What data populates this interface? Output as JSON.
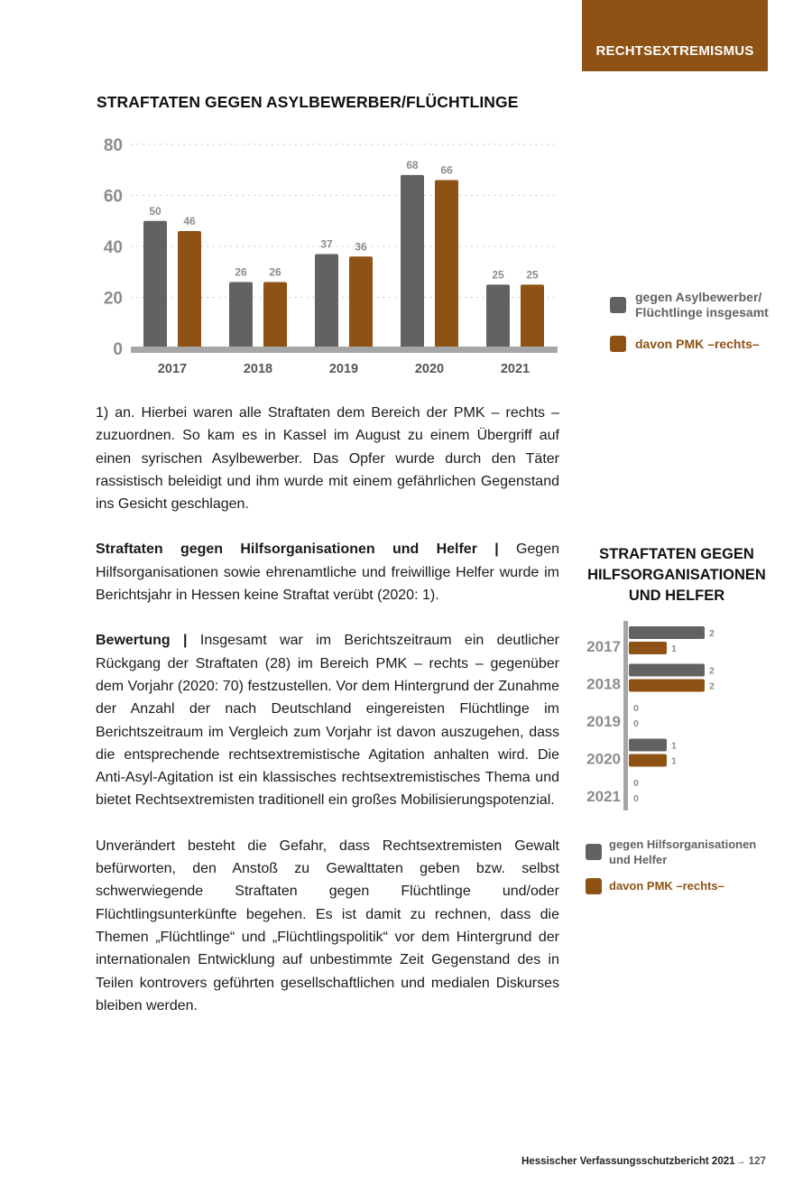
{
  "section_tag": "RECHTSEXTREMISMUS",
  "colors": {
    "gray": "#636262",
    "brown": "#8e5214",
    "axis": "#a6a6a6",
    "tick": "#8c8c8c"
  },
  "chart_data": [
    {
      "type": "bar",
      "title": "STRAFTATEN GEGEN ASYLBEWERBER/FLÜCHTLINGE",
      "categories": [
        "2017",
        "2018",
        "2019",
        "2020",
        "2021"
      ],
      "series": [
        {
          "name": "gegen Asylbewerber/ Flüchtlinge insgesamt",
          "values": [
            50,
            26,
            37,
            68,
            25
          ]
        },
        {
          "name": "davon PMK –rechts–",
          "values": [
            46,
            26,
            36,
            66,
            25
          ]
        }
      ],
      "yticks": [
        "0",
        "20",
        "40",
        "60",
        "80"
      ],
      "ylim": [
        0,
        80
      ],
      "grid": true,
      "legend": "right",
      "xlabel": "",
      "ylabel": ""
    },
    {
      "type": "bar",
      "orientation": "horizontal",
      "title": "STRAFTATEN GEGEN HILFSORGANISATIONEN UND HELFER",
      "categories": [
        "2017",
        "2018",
        "2019",
        "2020",
        "2021"
      ],
      "series": [
        {
          "name": "gegen Hilfsorganisationen und Helfer",
          "values": [
            2,
            2,
            0,
            1,
            0
          ]
        },
        {
          "name": "davon PMK –rechts–",
          "values": [
            1,
            2,
            0,
            1,
            0
          ]
        }
      ],
      "xlim": [
        0,
        2
      ],
      "legend": "bottom"
    }
  ],
  "text": {
    "p1": "1) an. Hierbei waren alle Straftaten dem Bereich der PMK – rechts – zuzuordnen. So kam es in Kassel im August zu einem Übergriff auf einen syrischen Asylbewerber. Das Opfer wurde durch den Täter rassistisch beleidigt und ihm wurde mit einem gefährlichen Gegenstand ins Gesicht geschlagen.",
    "p2_head": "Straftaten gegen Hilfsorganisationen und Helfer |",
    "p2": " Gegen Hilfsorganisationen sowie ehrenamtliche und freiwillige Helfer wurde im Berichtsjahr in Hessen keine Straftat verübt (2020: 1).",
    "p3_head": "Bewertung |",
    "p3": " Insgesamt war im Berichtszeitraum ein deutlicher Rückgang der Straftaten (28) im Bereich PMK – rechts – gegenüber dem Vorjahr (2020: 70) festzustellen. Vor dem Hintergrund der Zunahme der Anzahl der nach Deutschland eingereisten Flüchtlinge im Berichtszeitraum im Vergleich zum Vorjahr ist davon auszugehen, dass die entsprechende rechtsextremistische Agitation anhalten wird. Die Anti-Asyl-Agitation ist ein klassisches rechtsextremistisches Thema und bietet Rechtsextremisten traditionell ein großes Mobilisierungspotenzial.",
    "p4": "Unverändert besteht die Gefahr, dass Rechtsextremisten Gewalt befürworten, den Anstoß zu Gewalttaten geben bzw. selbst schwerwiegende Straftaten gegen Flüchtlinge und/oder Flüchtlingsunterkünfte begehen. Es ist damit zu rechnen, dass die Themen „Flüchtlinge“ und „Flüchtlingspolitik“ vor dem Hintergrund der internationalen Entwicklung auf unbestimmte Zeit Gegenstand des in Teilen kontrovers geführten gesellschaftlichen und medialen Diskurses bleiben werden."
  },
  "footer": {
    "title": "Hessischer Verfassungsschutzbericht 2021",
    "arrow": "→",
    "page": "127"
  }
}
